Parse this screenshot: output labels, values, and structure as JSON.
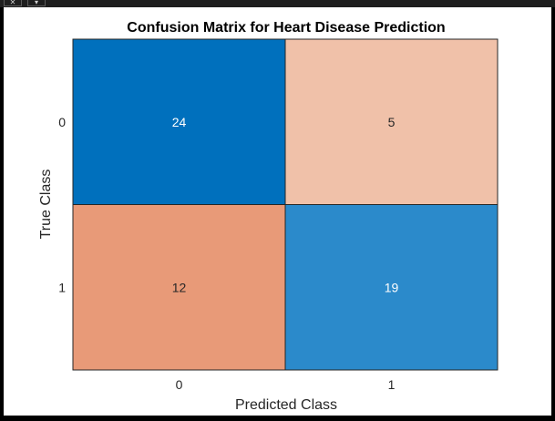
{
  "window": {
    "close_glyph": "✕",
    "menu_glyph": "▾"
  },
  "colors": {
    "figure_background": "#ffffff",
    "high_blue": "#0070bd",
    "mid_blue": "#2b8acb",
    "light_salmon": "#f0c1a9",
    "salmon": "#e89a78",
    "grid_line": "#262626"
  },
  "chart_data": {
    "type": "heatmap",
    "title": "Confusion Matrix for Heart Disease Prediction",
    "xlabel": "Predicted Class",
    "ylabel": "True Class",
    "x_categories": [
      "0",
      "1"
    ],
    "y_categories": [
      "0",
      "1"
    ],
    "matrix": [
      [
        24,
        5
      ],
      [
        12,
        19
      ]
    ],
    "cell_colors": [
      [
        "#0070bd",
        "#f0c1a9"
      ],
      [
        "#e89a78",
        "#2b8acb"
      ]
    ],
    "cell_text_colors": [
      [
        "#ffffff",
        "#262626"
      ],
      [
        "#262626",
        "#ffffff"
      ]
    ],
    "grid": true,
    "legend": "none"
  }
}
